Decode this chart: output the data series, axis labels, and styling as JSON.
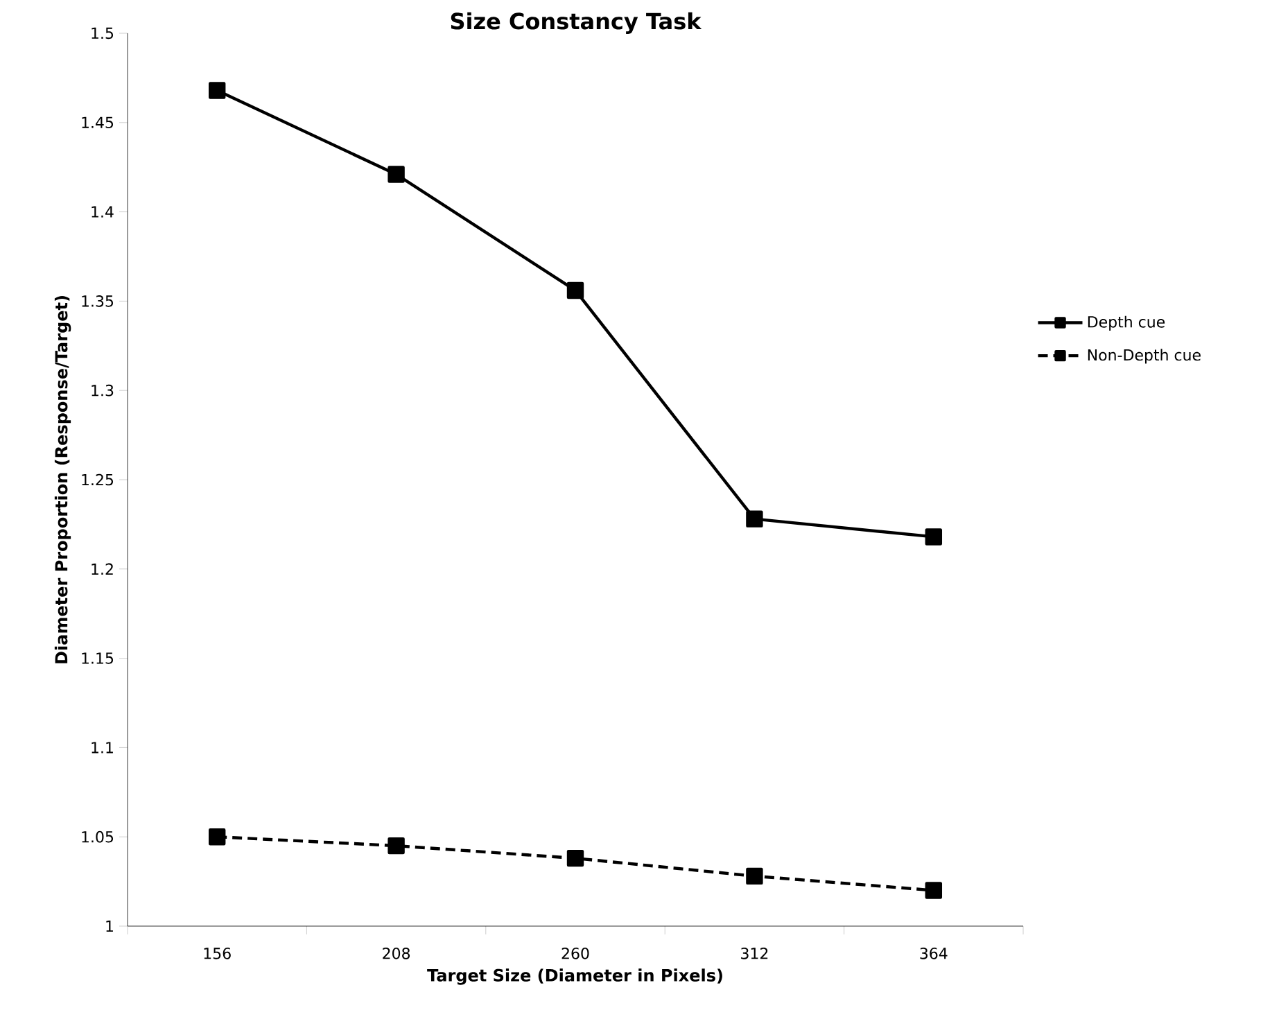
{
  "chart_data": {
    "type": "line",
    "title": "Size Constancy Task",
    "xlabel": "Target Size (Diameter in Pixels)",
    "ylabel": "Diameter Proportion (Response/Target)",
    "categories": [
      "156",
      "208",
      "260",
      "312",
      "364"
    ],
    "series": [
      {
        "name": "Depth cue",
        "color": "#000000",
        "line_style": "solid",
        "values": [
          1.468,
          1.421,
          1.356,
          1.228,
          1.218
        ]
      },
      {
        "name": "Non-Depth cue",
        "color": "#000000",
        "line_style": "dashed",
        "values": [
          1.05,
          1.045,
          1.038,
          1.028,
          1.02
        ]
      }
    ],
    "ylim": [
      1,
      1.5
    ],
    "yticks": [
      1,
      1.05,
      1.1,
      1.15,
      1.2,
      1.25,
      1.3,
      1.35,
      1.4,
      1.45,
      1.5
    ],
    "marker": "square",
    "legend": "right",
    "grid": false
  }
}
